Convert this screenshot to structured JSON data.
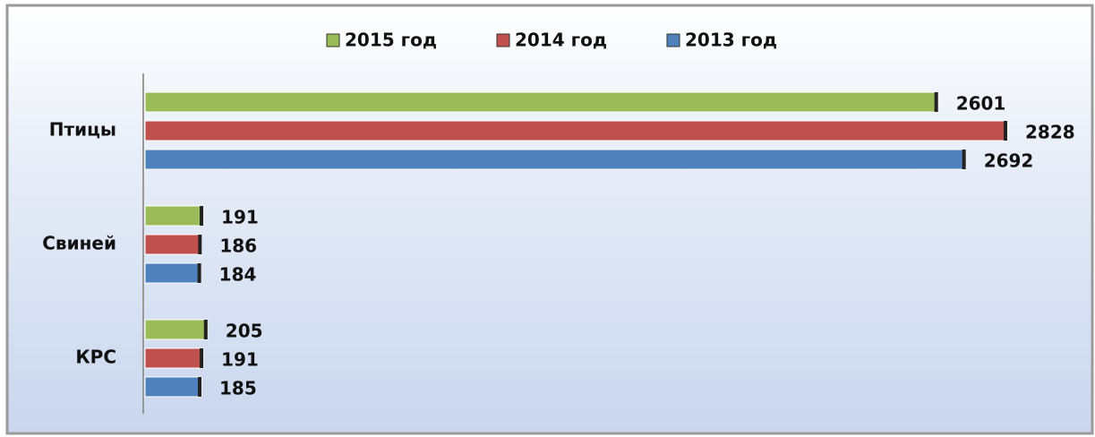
{
  "chart_data": {
    "type": "barh",
    "categories": [
      "Птицы",
      "Свиней",
      "КРС"
    ],
    "series": [
      {
        "name": "2015 год",
        "color": "#9bbb59",
        "values": [
          2601,
          191,
          205
        ]
      },
      {
        "name": "2014 год",
        "color": "#c0504d",
        "values": [
          2828,
          186,
          191
        ]
      },
      {
        "name": "2013 год",
        "color": "#4f81bd",
        "values": [
          2692,
          184,
          185
        ]
      }
    ],
    "legend": "top"
  }
}
